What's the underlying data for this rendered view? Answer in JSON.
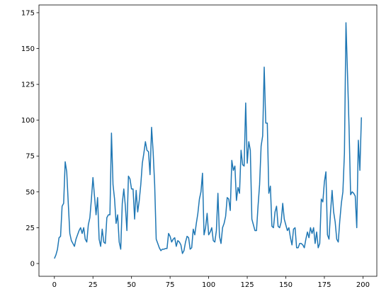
{
  "chart_data": {
    "type": "line",
    "color": "#1f77b4",
    "x": [
      0,
      1,
      2,
      3,
      4,
      5,
      6,
      7,
      8,
      9,
      10,
      11,
      12,
      13,
      14,
      15,
      16,
      17,
      18,
      19,
      20,
      21,
      22,
      23,
      24,
      25,
      26,
      27,
      28,
      29,
      30,
      31,
      32,
      33,
      34,
      35,
      36,
      37,
      38,
      39,
      40,
      41,
      42,
      43,
      44,
      45,
      46,
      47,
      48,
      49,
      50,
      51,
      52,
      53,
      54,
      55,
      56,
      57,
      58,
      59,
      60,
      61,
      62,
      63,
      64,
      65,
      66,
      67,
      68,
      69,
      70,
      71,
      72,
      73,
      74,
      75,
      76,
      77,
      78,
      79,
      80,
      81,
      82,
      83,
      84,
      85,
      86,
      87,
      88,
      89,
      90,
      91,
      92,
      93,
      94,
      95,
      96,
      97,
      98,
      99,
      100,
      101,
      102,
      103,
      104,
      105,
      106,
      107,
      108,
      109,
      110,
      111,
      112,
      113,
      114,
      115,
      116,
      117,
      118,
      119,
      120,
      121,
      122,
      123,
      124,
      125,
      126,
      127,
      128,
      129,
      130,
      131,
      132,
      133,
      134,
      135,
      136,
      137,
      138,
      139,
      140,
      141,
      142,
      143,
      144,
      145,
      146,
      147,
      148,
      149,
      150,
      151,
      152,
      153,
      154,
      155,
      156,
      157,
      158,
      159,
      160,
      161,
      162,
      163,
      164,
      165,
      166,
      167,
      168,
      169,
      170,
      171,
      172,
      173,
      174,
      175,
      176,
      177,
      178,
      179,
      180,
      181,
      182,
      183,
      184,
      185,
      186,
      187,
      188,
      189,
      190,
      191,
      192,
      193,
      194,
      195,
      196,
      197,
      198,
      199
    ],
    "values": [
      3.5,
      6,
      10,
      18,
      19,
      40,
      42,
      71,
      64,
      42,
      21,
      16,
      14,
      12,
      17,
      20,
      23,
      25,
      21,
      25,
      17,
      15,
      27,
      32,
      45,
      60,
      47,
      34,
      46,
      17,
      12,
      24,
      15,
      14,
      32,
      34,
      34,
      91,
      55,
      45,
      28,
      34,
      15,
      10,
      42,
      52,
      40,
      23,
      61,
      59,
      52,
      52,
      31,
      51,
      36,
      44,
      55,
      70,
      77,
      85,
      79,
      78,
      62,
      95,
      78,
      55,
      17,
      14,
      11,
      9,
      10,
      10,
      10.5,
      10.5,
      21,
      19,
      15,
      17,
      18,
      12,
      16,
      15,
      13,
      7,
      9,
      15,
      19,
      18,
      10,
      11,
      24,
      20,
      28,
      35,
      45,
      50,
      63,
      20,
      25,
      35,
      20,
      22,
      25,
      16,
      15,
      23,
      49,
      19,
      14,
      25,
      28,
      33,
      46,
      45,
      37,
      72,
      65,
      68,
      44,
      53,
      49,
      79,
      69,
      68,
      112,
      70,
      85,
      79,
      31,
      27,
      23,
      23,
      40,
      55,
      82,
      89,
      137,
      98,
      98,
      49,
      54,
      26,
      25,
      36,
      40,
      26,
      25,
      29,
      42,
      31,
      27,
      23,
      25,
      18,
      13,
      24,
      25,
      11,
      11,
      14,
      14,
      13,
      11,
      17,
      22,
      18,
      25,
      21,
      25,
      14,
      22,
      11,
      14,
      45,
      43,
      57,
      64,
      20,
      17,
      36,
      51,
      36,
      29,
      17,
      15,
      30,
      42,
      50,
      77,
      168,
      132,
      95,
      48,
      50,
      49,
      47,
      25,
      86,
      65,
      102
    ],
    "xlim": [
      -10,
      209
    ],
    "xticks": [
      0,
      25,
      50,
      75,
      100,
      125,
      150,
      175,
      200
    ],
    "ylim": [
      -8.9,
      180.4
    ],
    "yticks": [
      0,
      25,
      50,
      75,
      100,
      125,
      150,
      175
    ]
  }
}
